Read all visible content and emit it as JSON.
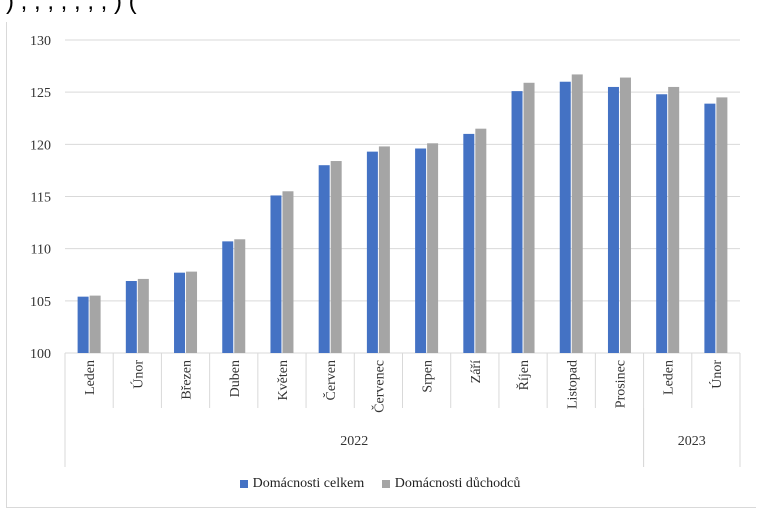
{
  "chart_data": {
    "type": "bar",
    "title": "",
    "xlabel": "",
    "ylabel": "",
    "ylim": [
      100,
      130
    ],
    "yticks": [
      100,
      105,
      110,
      115,
      120,
      125,
      130
    ],
    "grid": true,
    "legend_position": "bottom",
    "categories": [
      "Leden",
      "Únor",
      "Březen",
      "Duben",
      "Květen",
      "Červen",
      "Červenec",
      "Srpen",
      "Září",
      "Říjen",
      "Listopad",
      "Prosinec",
      "Leden",
      "Únor"
    ],
    "year_groups": [
      {
        "label": "2022",
        "count": 12
      },
      {
        "label": "2023",
        "count": 2
      }
    ],
    "series": [
      {
        "name": "Domácnosti celkem",
        "color": "#4472c4",
        "values": [
          105.4,
          106.9,
          107.7,
          110.7,
          115.1,
          118.0,
          119.3,
          119.6,
          121.0,
          125.1,
          126.0,
          125.5,
          124.8,
          123.9
        ]
      },
      {
        "name": "Domácnosti důchodců",
        "color": "#a5a5a5",
        "values": [
          105.5,
          107.1,
          107.8,
          110.9,
          115.5,
          118.4,
          119.8,
          120.1,
          121.5,
          125.9,
          126.7,
          126.4,
          125.5,
          124.5
        ]
      }
    ]
  },
  "page": {
    "top_text": ") , , , , , , , ) ("
  }
}
